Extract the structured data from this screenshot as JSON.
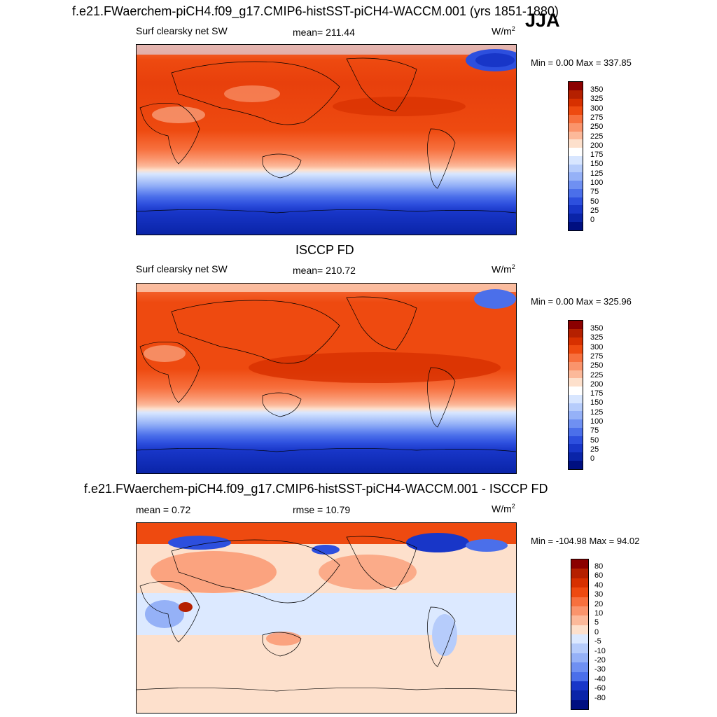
{
  "figure": {
    "title": "f.e21.FWaerchem-piCH4.f09_g17.CMIP6-histSST-piCH4-WACCM.001 (yrs 1851-1880)",
    "season": "JJA"
  },
  "panels": [
    {
      "left": "Surf clearsky net SW",
      "middle": "mean= 211.44",
      "units": "W/m",
      "units_sup": "2",
      "minmax": "Min =   0.00 Max = 337.85"
    },
    {
      "heading": "ISCCP FD",
      "left": "Surf clearsky net SW",
      "middle": "mean= 210.72",
      "units": "W/m",
      "units_sup": "2",
      "minmax": "Min =   0.00 Max = 325.96"
    },
    {
      "heading": "f.e21.FWaerchem-piCH4.f09_g17.CMIP6-histSST-piCH4-WACCM.001 - ISCCP FD",
      "left": "mean =   0.72",
      "middle": "rmse =  10.79",
      "units": "W/m",
      "units_sup": "2",
      "minmax": "Min = -104.98 Max =  94.02"
    }
  ],
  "colorbars": {
    "field": {
      "labels": [
        "350",
        "325",
        "300",
        "275",
        "250",
        "225",
        "200",
        "175",
        "150",
        "125",
        "100",
        "75",
        "50",
        "25",
        "0"
      ],
      "colors": [
        "#8b0000",
        "#b52000",
        "#d73000",
        "#ee4a10",
        "#f7703e",
        "#fa946c",
        "#fcb99a",
        "#fde0cc",
        "#ffffff",
        "#d8e6ff",
        "#b6ccfb",
        "#95b1f7",
        "#6f90f2",
        "#4b6fea",
        "#2d4fde",
        "#1836c8",
        "#0a24a8",
        "#000f80"
      ]
    },
    "diff": {
      "labels": [
        "80",
        "60",
        "40",
        "30",
        "20",
        "10",
        "5",
        "0",
        "-5",
        "-10",
        "-20",
        "-30",
        "-40",
        "-60",
        "-80"
      ],
      "colors": [
        "#8b0000",
        "#b52000",
        "#d73000",
        "#ee4a10",
        "#f7703e",
        "#fa946c",
        "#fcb99a",
        "#fde0cc",
        "#dce9ff",
        "#b6ccfb",
        "#95b1f7",
        "#6f90f2",
        "#4b6fea",
        "#1836c8",
        "#0a24a8",
        "#000f80"
      ]
    }
  }
}
